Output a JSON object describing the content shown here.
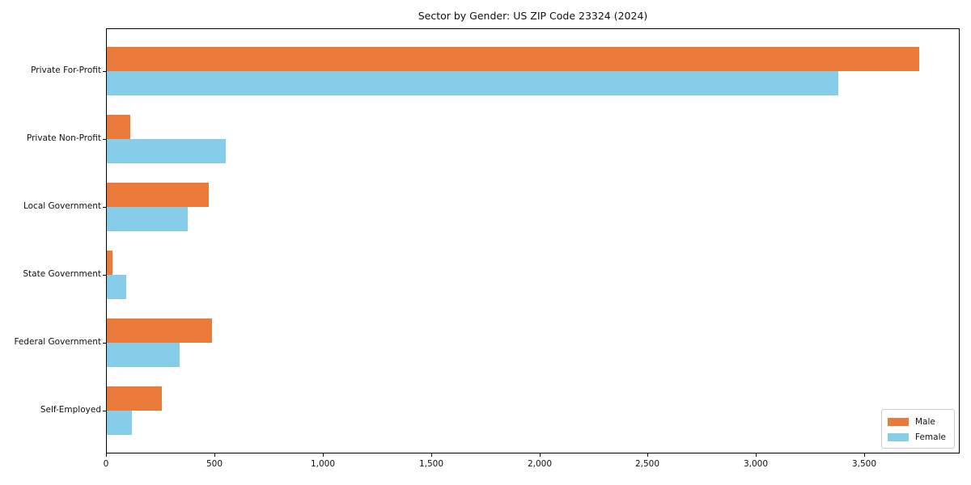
{
  "title": "Sector by Gender: US ZIP Code 23324 (2024)",
  "chart_data": {
    "type": "bar",
    "orientation": "horizontal",
    "title": "Sector by Gender: US ZIP Code 23324 (2024)",
    "categories": [
      "Private For-Profit",
      "Private Non-Profit",
      "Local Government",
      "State Government",
      "Federal Government",
      "Self-Employed"
    ],
    "series": [
      {
        "name": "Male",
        "color": "#EA7A39",
        "values": [
          3750,
          110,
          470,
          25,
          485,
          255
        ]
      },
      {
        "name": "Female",
        "color": "#86CDE9",
        "values": [
          3375,
          550,
          375,
          90,
          335,
          115
        ]
      }
    ],
    "xlabel": "",
    "ylabel": "",
    "xlim": [
      0,
      3940
    ],
    "xticks": [
      0,
      500,
      1000,
      1500,
      2000,
      2500,
      3000,
      3500
    ],
    "xtick_labels": [
      "0",
      "500",
      "1,000",
      "1,500",
      "2,000",
      "2,500",
      "3,000",
      "3,500"
    ],
    "grid": false,
    "legend_position": "lower right",
    "background_color": "#ffffff",
    "axis_color": "#000000"
  }
}
